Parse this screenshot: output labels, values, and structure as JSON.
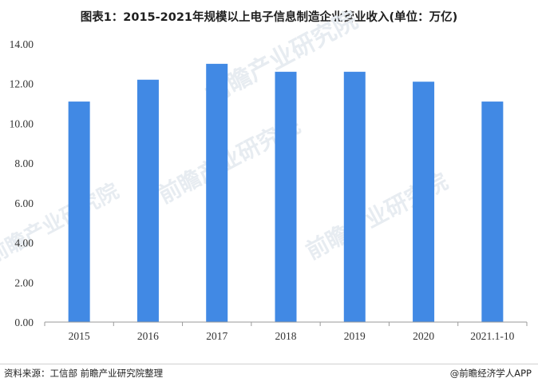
{
  "title": "图表1：2015-2021年规模以上电子信息制造企业营业收入(单位：万亿)",
  "source": "资料来源：工信部 前瞻产业研究院整理",
  "credit": "@前瞻经济学人APP",
  "watermark": "前瞻产业研究院",
  "colors": {
    "bar": "#4189e4",
    "axis": "#9a9a9a"
  },
  "chart_data": {
    "type": "bar",
    "title": "图表1：2015-2021年规模以上电子信息制造企业营业收入(单位：万亿)",
    "categories": [
      "2015",
      "2016",
      "2017",
      "2018",
      "2019",
      "2020",
      "2021.1-10"
    ],
    "values": [
      11.1,
      12.2,
      13.0,
      12.6,
      12.6,
      12.1,
      11.1
    ],
    "y_ticks": [
      "0.00",
      "2.00",
      "4.00",
      "6.00",
      "8.00",
      "10.00",
      "12.00",
      "14.00"
    ],
    "ylim": [
      0,
      14
    ],
    "xlabel": "",
    "ylabel": "",
    "grid": false,
    "legend": "none"
  }
}
